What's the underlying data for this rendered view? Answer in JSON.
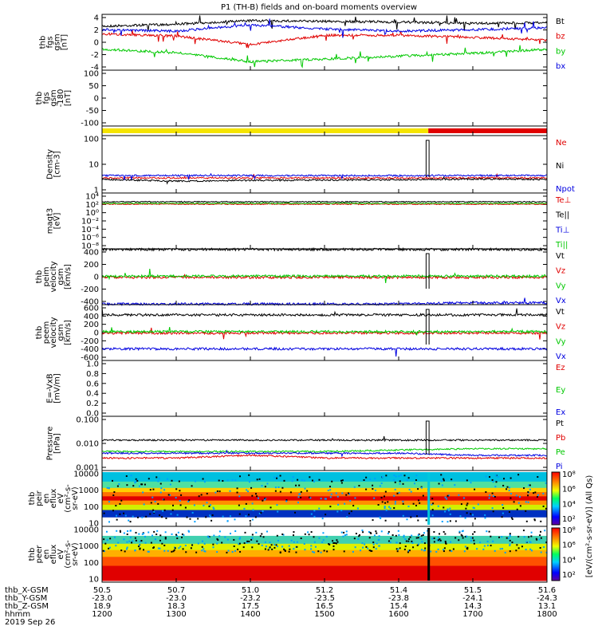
{
  "title": "P1 (TH-B) fields and on-board moments overview",
  "colors": {
    "black": "#000000",
    "red": "#e00000",
    "green": "#00c800",
    "blue": "#0000e0",
    "yellow": "#f5e400",
    "barRed": "#e00000",
    "cyan": "#00c8dc"
  },
  "chart_data": [
    {
      "type": "line",
      "ylabel": [
        "thb",
        "fgs",
        "gsm",
        "[nT]"
      ],
      "yticks": [
        "4",
        "2",
        "0",
        "-2",
        "-4"
      ],
      "ylim": [
        -4,
        4
      ],
      "legend": [
        {
          "name": "Bt",
          "color": "black"
        },
        {
          "name": "bz",
          "color": "red"
        },
        {
          "name": "by",
          "color": "green"
        },
        {
          "name": "bx",
          "color": "blue"
        }
      ],
      "series": [
        {
          "name": "Bt",
          "x": [
            1200,
            1300,
            1400,
            1500,
            1600,
            1700,
            1800
          ],
          "values": [
            2.3,
            2.6,
            3.1,
            3.0,
            2.9,
            2.7,
            2.8
          ]
        },
        {
          "name": "bz",
          "x": [
            1200,
            1300,
            1400,
            1500,
            1600,
            1700,
            1800
          ],
          "values": [
            1.2,
            0.9,
            -0.3,
            1.0,
            1.0,
            0.7,
            0.3
          ]
        },
        {
          "name": "by",
          "x": [
            1200,
            1300,
            1400,
            1500,
            1600,
            1700,
            1800
          ],
          "values": [
            -1.0,
            -1.5,
            -2.8,
            -2.4,
            -2.0,
            -1.6,
            -1.0
          ]
        },
        {
          "name": "bx",
          "x": [
            1200,
            1300,
            1400,
            1500,
            1600,
            1700,
            1800
          ],
          "values": [
            1.8,
            1.6,
            2.5,
            1.9,
            1.6,
            1.8,
            2.1
          ]
        }
      ]
    },
    {
      "type": "line",
      "ylabel": [
        "thb",
        "fgs",
        "gsm",
        "-180",
        "[nT]"
      ],
      "yticks": [
        "100",
        "50",
        "0",
        "-50",
        "-100"
      ],
      "ylim": [
        -120,
        100
      ],
      "legend": []
    },
    {
      "type": "bar",
      "ylabel": [],
      "note": "mode bar: yellow until ~1640, red afterwards",
      "segments": [
        {
          "from": 1200,
          "to": 1640,
          "color": "yellow"
        },
        {
          "from": 1640,
          "to": 1800,
          "color": "barRed"
        }
      ]
    },
    {
      "type": "line",
      "ylabel": [
        "Density",
        "[cm-3]"
      ],
      "yticks": [
        "100",
        "10",
        "1"
      ],
      "scale": "log",
      "legend": [
        {
          "name": "Ne",
          "color": "red"
        },
        {
          "name": "Ni",
          "color": "black"
        },
        {
          "name": "Npot",
          "color": "blue"
        }
      ],
      "series": [
        {
          "name": "Ne",
          "values": [
            4,
            4,
            4,
            4,
            4,
            4,
            4
          ]
        },
        {
          "name": "Ni",
          "values": [
            3.5,
            3.0,
            3.2,
            3.3,
            3.4,
            3.6,
            3.5
          ]
        },
        {
          "name": "Npot",
          "values": [
            5,
            5,
            5,
            5,
            5,
            5,
            5
          ]
        }
      ]
    },
    {
      "type": "line",
      "ylabel": [
        "magt3",
        "[eV]"
      ],
      "yticks": [
        "10⁴",
        "10²",
        "10⁰",
        "10⁻²",
        "10⁻⁴",
        "10⁻⁶",
        "10⁻⁸"
      ],
      "scale": "log",
      "legend": [
        {
          "name": "Te⊥",
          "color": "red"
        },
        {
          "name": "Te||",
          "color": "black"
        },
        {
          "name": "Ti⊥",
          "color": "blue"
        },
        {
          "name": "Ti||",
          "color": "green"
        }
      ]
    },
    {
      "type": "line",
      "ylabel": [
        "thb",
        "peim",
        "velocity",
        "gsm",
        "[km/s]"
      ],
      "yticks": [
        "400",
        "200",
        "0",
        "-200",
        "-400"
      ],
      "ylim": [
        -450,
        450
      ],
      "legend": [
        {
          "name": "Vt",
          "color": "black"
        },
        {
          "name": "Vz",
          "color": "red"
        },
        {
          "name": "Vy",
          "color": "green"
        },
        {
          "name": "Vx",
          "color": "blue"
        }
      ],
      "series": [
        {
          "name": "Vt",
          "values": [
            440,
            440,
            440,
            440,
            440,
            440,
            440
          ]
        },
        {
          "name": "Vz",
          "values": [
            -10,
            -10,
            -10,
            -10,
            -10,
            -10,
            -10
          ]
        },
        {
          "name": "Vy",
          "values": [
            10,
            10,
            10,
            10,
            10,
            10,
            10
          ]
        },
        {
          "name": "Vx",
          "values": [
            -440,
            -440,
            -440,
            -440,
            -440,
            -420,
            -420
          ]
        }
      ]
    },
    {
      "type": "line",
      "ylabel": [
        "thb",
        "peem",
        "velocity",
        "gsm",
        "[km/s]"
      ],
      "yticks": [
        "600",
        "400",
        "200",
        "0",
        "-200",
        "-400",
        "-600"
      ],
      "ylim": [
        -600,
        600
      ],
      "legend": [
        {
          "name": "Vt",
          "color": "black"
        },
        {
          "name": "Vz",
          "color": "red"
        },
        {
          "name": "Vy",
          "color": "green"
        },
        {
          "name": "Vx",
          "color": "blue"
        }
      ],
      "series": [
        {
          "name": "Vt",
          "values": [
            380,
            380,
            380,
            380,
            380,
            380,
            380
          ]
        },
        {
          "name": "Vz",
          "values": [
            -10,
            -10,
            -10,
            -10,
            -10,
            -10,
            -10
          ]
        },
        {
          "name": "Vy",
          "values": [
            20,
            20,
            20,
            20,
            20,
            20,
            20
          ]
        },
        {
          "name": "Vx",
          "values": [
            -350,
            -350,
            -350,
            -350,
            -350,
            -350,
            -350
          ]
        }
      ]
    },
    {
      "type": "line",
      "ylabel": [
        "E=-VxB",
        "[mV/m]"
      ],
      "yticks": [
        "1.0",
        "0.8",
        "0.6",
        "0.4",
        "0.2",
        "0.0"
      ],
      "ylim": [
        0,
        1
      ],
      "legend": [
        {
          "name": "Ez",
          "color": "red"
        },
        {
          "name": "Ey",
          "color": "green"
        },
        {
          "name": "Ex",
          "color": "blue"
        }
      ]
    },
    {
      "type": "line",
      "ylabel": [
        "Pressure",
        "[nPa]"
      ],
      "yticks": [
        "0.100",
        "0.010",
        "0.001"
      ],
      "scale": "log",
      "legend": [
        {
          "name": "Pt",
          "color": "black"
        },
        {
          "name": "Pb",
          "color": "red"
        },
        {
          "name": "Pe",
          "color": "green"
        },
        {
          "name": "Pi",
          "color": "blue"
        }
      ],
      "series": [
        {
          "name": "Pt",
          "values": [
            0.02,
            0.02,
            0.02,
            0.02,
            0.02,
            0.02,
            0.02
          ]
        },
        {
          "name": "Pb",
          "values": [
            0.003,
            0.003,
            0.004,
            0.003,
            0.003,
            0.003,
            0.003
          ]
        },
        {
          "name": "Pe",
          "values": [
            0.006,
            0.006,
            0.006,
            0.006,
            0.007,
            0.008,
            0.008
          ]
        },
        {
          "name": "Pi",
          "values": [
            0.005,
            0.005,
            0.005,
            0.005,
            0.005,
            0.004,
            0.004
          ]
        }
      ]
    },
    {
      "type": "heatmap",
      "ylabel": [
        "thb",
        "peir",
        "en",
        "eflux",
        "eV",
        "(cm²-s-",
        "sr-eV)"
      ],
      "yticks": [
        "10000",
        "1000",
        "100",
        "10"
      ],
      "scale": "log"
    },
    {
      "type": "heatmap",
      "ylabel": [
        "thb",
        "peer",
        "en",
        "eflux",
        "eV",
        "(cm²-s-",
        "sr-eV)"
      ],
      "yticks": [
        "10000",
        "1000",
        "100",
        "10"
      ],
      "scale": "log"
    }
  ],
  "colorbar": {
    "ticks": [
      "10⁸",
      "10⁶",
      "10⁴",
      "10²",
      "10⁸",
      "10⁶",
      "10⁴",
      "10²"
    ],
    "label": "[eV/(cm²-s-sr-eV)] (All Qs)"
  },
  "time_axis": {
    "rows": [
      {
        "label": "thb_X-GSM",
        "values": [
          "50.5",
          "50.7",
          "51.0",
          "51.2",
          "51.4",
          "51.5",
          "51.6"
        ]
      },
      {
        "label": "thb_Y-GSM",
        "values": [
          "-23.0",
          "-23.0",
          "-23.2",
          "-23.5",
          "-23.8",
          "-24.1",
          "-24.3"
        ]
      },
      {
        "label": "thb_Z-GSM",
        "values": [
          "18.9",
          "18.3",
          "17.5",
          "16.5",
          "15.4",
          "14.3",
          "13.1"
        ]
      },
      {
        "label": "hhmm",
        "values": [
          "1200",
          "1300",
          "1400",
          "1500",
          "1600",
          "1700",
          "1800"
        ]
      }
    ],
    "date": "2019 Sep 26"
  }
}
